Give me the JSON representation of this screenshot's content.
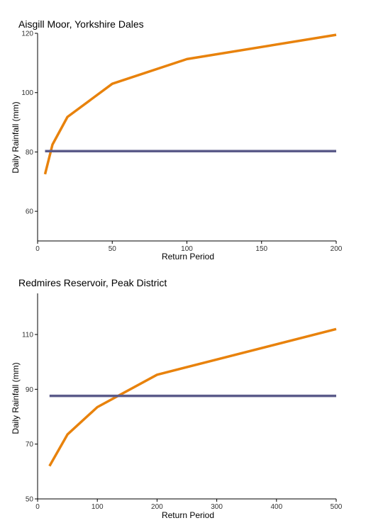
{
  "chart_data": [
    {
      "type": "line",
      "title": "Aisgill Moor, Yorkshire Dales",
      "xlabel": "Return Period",
      "ylabel": "Daily Rainfall (mm)",
      "xlim": [
        0,
        200
      ],
      "ylim": [
        50,
        120
      ],
      "xticks": [
        0,
        50,
        100,
        150,
        200
      ],
      "xtick_labels": [
        "0",
        "50",
        "100",
        "150",
        "200"
      ],
      "yticks": [
        60,
        80,
        100,
        120
      ],
      "ytick_labels": [
        "60",
        "80",
        "100",
        "120"
      ],
      "grid": false,
      "series": [
        {
          "color": "#E8820C",
          "x": [
            5,
            10,
            20,
            50,
            100,
            200
          ],
          "y": [
            72.5,
            82.5,
            91.8,
            103,
            111.3,
            119.5
          ]
        },
        {
          "color": "#5B5B8A",
          "x": [
            5,
            200
          ],
          "y": [
            80.3,
            80.3
          ]
        }
      ]
    },
    {
      "type": "line",
      "title": "Redmires Reservoir, Peak District",
      "xlabel": "Return Period",
      "ylabel": "Daily Rainfall (mm)",
      "xlim": [
        0,
        500
      ],
      "ylim": [
        50,
        125
      ],
      "xticks": [
        0,
        100,
        200,
        300,
        400,
        500
      ],
      "xtick_labels": [
        "0",
        "100",
        "200",
        "300",
        "400",
        "500"
      ],
      "yticks": [
        50,
        70,
        90,
        110
      ],
      "ytick_labels": [
        "50",
        "70",
        "90",
        "110"
      ],
      "grid": false,
      "series": [
        {
          "color": "#E8820C",
          "x": [
            20,
            50,
            100,
            200,
            500
          ],
          "y": [
            62,
            73.5,
            83.5,
            95.3,
            112
          ]
        },
        {
          "color": "#5B5B8A",
          "x": [
            20,
            500
          ],
          "y": [
            87.6,
            87.6
          ]
        }
      ]
    }
  ]
}
